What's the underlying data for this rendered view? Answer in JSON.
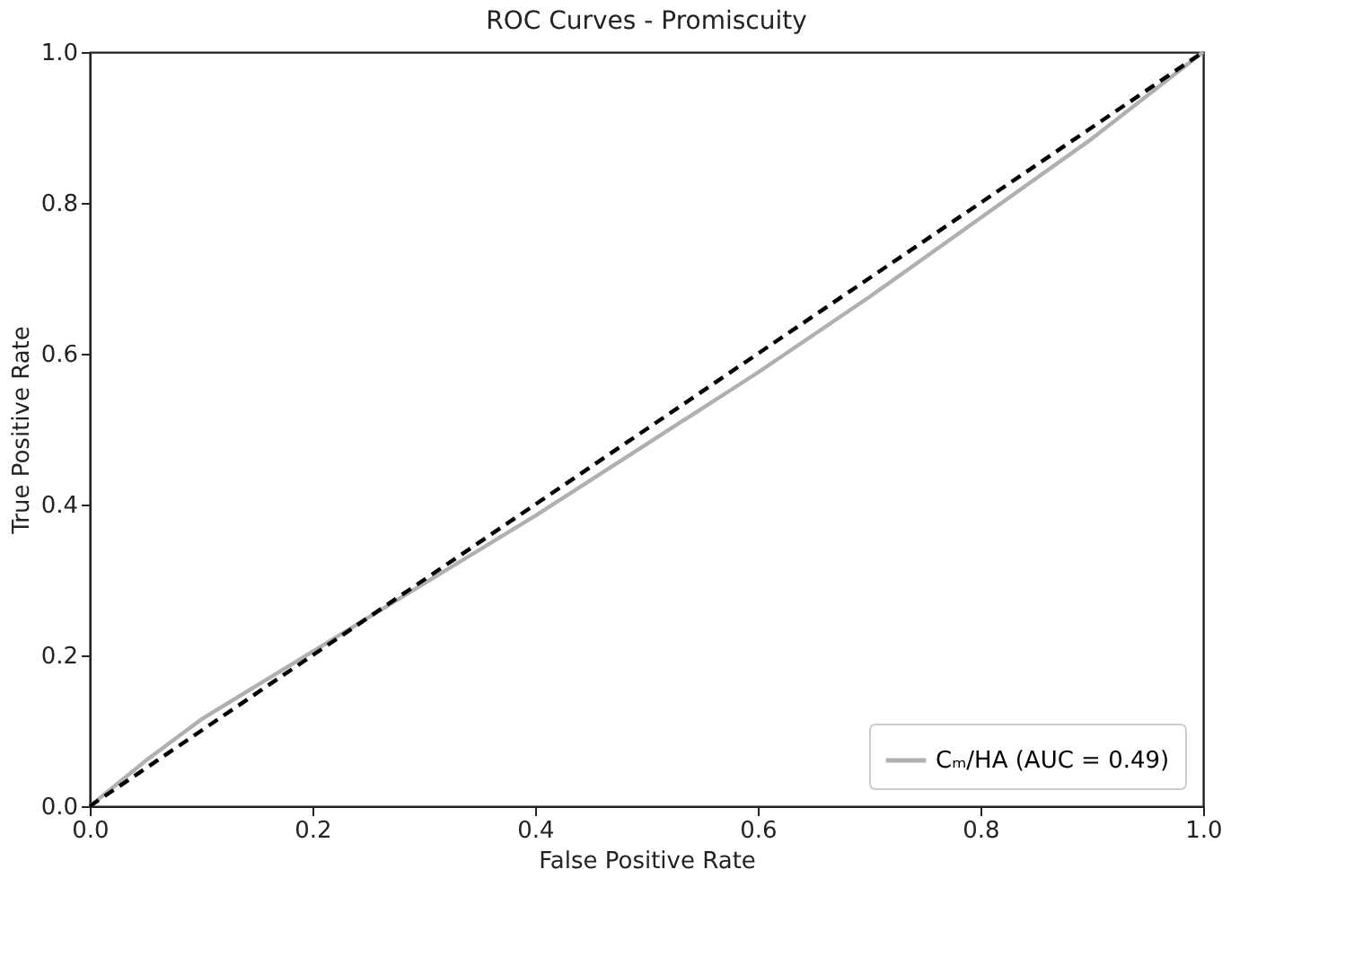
{
  "chart_data": {
    "type": "line",
    "title": "ROC Curves - Promiscuity",
    "xlabel": "False Positive Rate",
    "ylabel": "True Positive Rate",
    "xlim": [
      0.0,
      1.0
    ],
    "ylim": [
      0.0,
      1.0
    ],
    "xticks": [
      {
        "value": 0,
        "label": "0.0"
      },
      0.2,
      0.4,
      0.6,
      0.8,
      {
        "value": 1,
        "label": "1.0"
      }
    ],
    "yticks": [
      {
        "value": 0,
        "label": "0.0"
      },
      0.2,
      0.4,
      0.6,
      0.8,
      {
        "value": 1,
        "label": "1.0"
      }
    ],
    "grid": false,
    "legend": "bottom right",
    "series": [
      {
        "name": "Cₘ/HA (AUC = 0.49)",
        "color": "#b0b0b0",
        "line_style": "solid",
        "x": [
          0,
          0.05,
          0.1,
          0.2,
          0.3,
          0.4,
          0.5,
          0.6,
          0.7,
          0.8,
          0.9,
          1.0
        ],
        "values": [
          0,
          0.06,
          0.115,
          0.205,
          0.295,
          0.385,
          0.48,
          0.575,
          0.675,
          0.78,
          0.885,
          1.0
        ]
      },
      {
        "type": "line",
        "color": "#000000",
        "line_style": "dashed",
        "x": [
          0,
          1.0
        ],
        "values": [
          0,
          1.0
        ]
      }
    ]
  }
}
